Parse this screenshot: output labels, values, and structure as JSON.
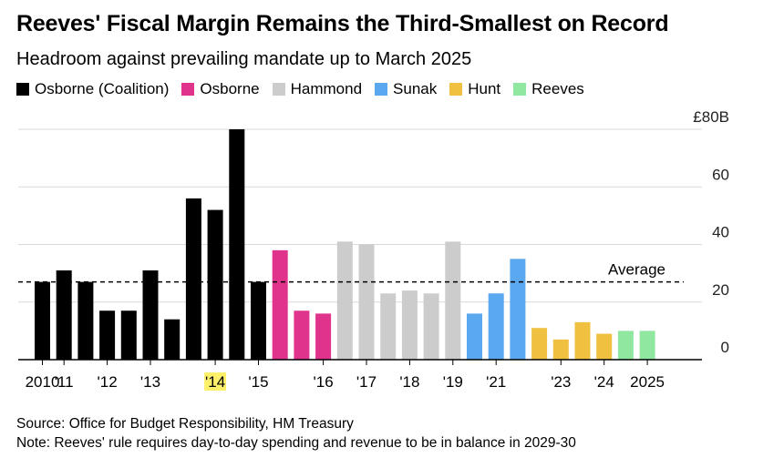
{
  "title": "Reeves' Fiscal Margin Remains the Third-Smallest on Record",
  "subtitle": "Headroom against prevailing mandate up to March 2025",
  "legend": [
    {
      "label": "Osborne (Coalition)",
      "color": "#000000"
    },
    {
      "label": "Osborne",
      "color": "#e0338c"
    },
    {
      "label": "Hammond",
      "color": "#cccccc"
    },
    {
      "label": "Sunak",
      "color": "#5aa8f0"
    },
    {
      "label": "Hunt",
      "color": "#f0c040"
    },
    {
      "label": "Reeves",
      "color": "#90e8a0"
    }
  ],
  "source": "Source: Office for Budget Responsibility, HM Treasury",
  "note": "Note: Reeves' rule requires day-to-day spending and revenue to be in balance in 2029-30",
  "chart_data": {
    "type": "bar",
    "unit": "£B",
    "ylim": [
      0,
      80
    ],
    "yticks": [
      0,
      20,
      40,
      60,
      80
    ],
    "ytick_labels": [
      "0",
      "20",
      "40",
      "60",
      "£80B"
    ],
    "average": 27,
    "average_label": "Average",
    "highlight_tick": "'14",
    "highlight_color": "#fff06a",
    "series": [
      {
        "name": "Osborne (Coalition)",
        "color": "#000000",
        "values": [
          27,
          31,
          27,
          17,
          17,
          31,
          14,
          56,
          52,
          80,
          27
        ]
      },
      {
        "name": "Osborne",
        "color": "#e0338c",
        "values": [
          38,
          17,
          16
        ]
      },
      {
        "name": "Hammond",
        "color": "#cccccc",
        "values": [
          41,
          40,
          23,
          24,
          23,
          41
        ]
      },
      {
        "name": "Sunak",
        "color": "#5aa8f0",
        "values": [
          16,
          23,
          35
        ]
      },
      {
        "name": "Hunt",
        "color": "#f0c040",
        "values": [
          11,
          7,
          13,
          9
        ]
      },
      {
        "name": "Reeves",
        "color": "#90e8a0",
        "values": [
          10,
          10
        ]
      }
    ],
    "x_ticks": [
      {
        "label": "2010",
        "bar": 0
      },
      {
        "label": "'11",
        "bar": 1
      },
      {
        "label": "'12",
        "bar": 3
      },
      {
        "label": "'13",
        "bar": 5
      },
      {
        "label": "'14",
        "bar": 8
      },
      {
        "label": "'15",
        "bar": 10
      },
      {
        "label": "'16",
        "bar": 13
      },
      {
        "label": "'17",
        "bar": 15
      },
      {
        "label": "'18",
        "bar": 17
      },
      {
        "label": "'19",
        "bar": 19
      },
      {
        "label": "'21",
        "bar": 21
      },
      {
        "label": "'23",
        "bar": 24
      },
      {
        "label": "'24",
        "bar": 26
      },
      {
        "label": "2025",
        "bar": 28
      }
    ]
  }
}
